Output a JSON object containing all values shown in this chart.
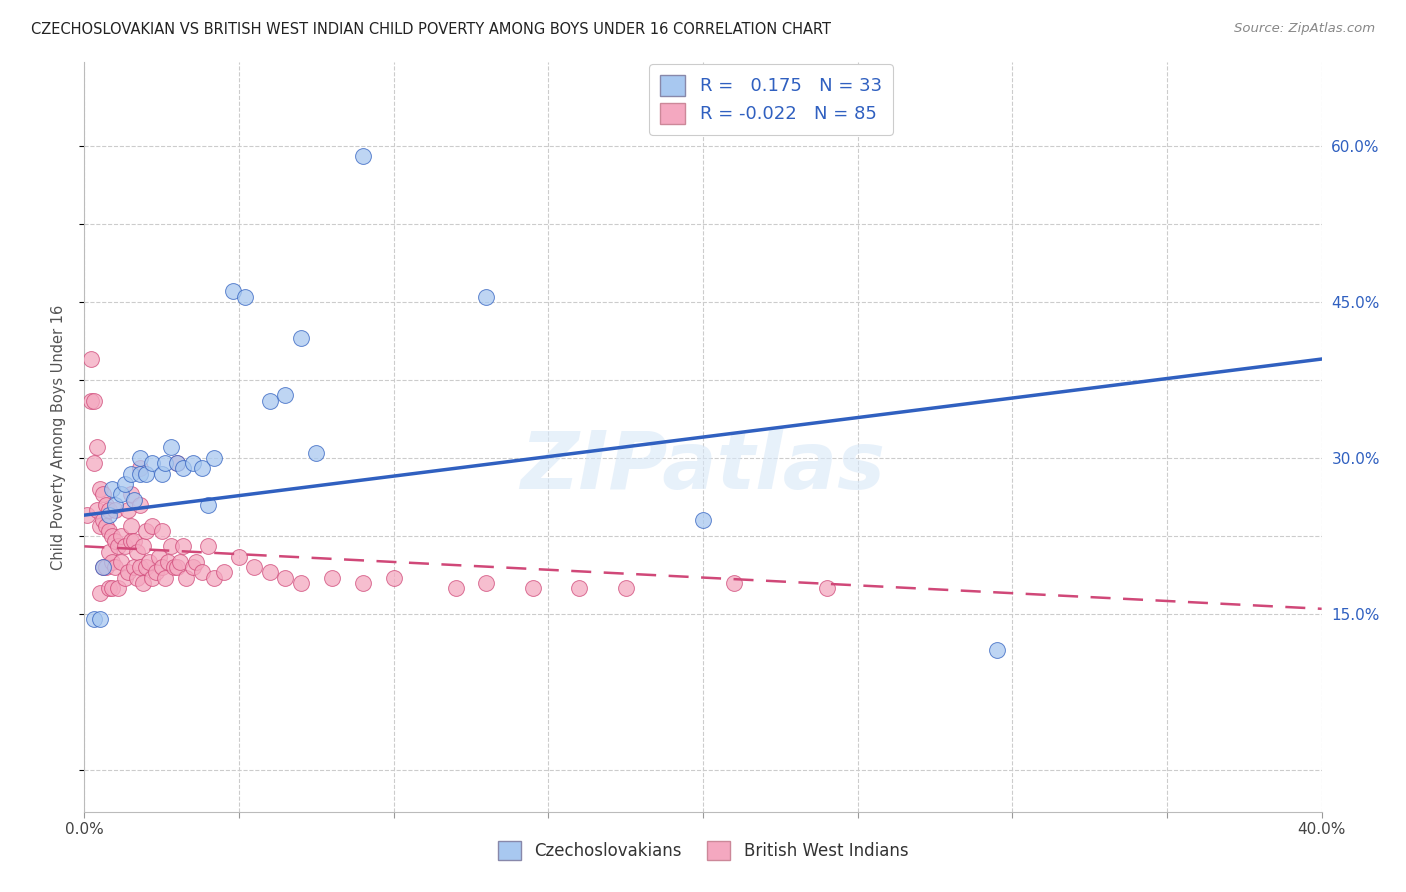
{
  "title": "CZECHOSLOVAKIAN VS BRITISH WEST INDIAN CHILD POVERTY AMONG BOYS UNDER 16 CORRELATION CHART",
  "source": "Source: ZipAtlas.com",
  "ylabel": "Child Poverty Among Boys Under 16",
  "r_czech": 0.175,
  "n_czech": 33,
  "r_bwi": -0.022,
  "n_bwi": 85,
  "xlim": [
    0.0,
    0.4
  ],
  "ylim": [
    -0.04,
    0.68
  ],
  "color_czech": "#a8c8f0",
  "color_bwi": "#f4a8c0",
  "line_color_czech": "#3060c0",
  "line_color_bwi": "#d04878",
  "background": "#ffffff",
  "watermark": "ZIPatlas",
  "czech_x": [
    0.003,
    0.005,
    0.006,
    0.008,
    0.009,
    0.01,
    0.012,
    0.013,
    0.015,
    0.016,
    0.018,
    0.018,
    0.02,
    0.022,
    0.025,
    0.026,
    0.028,
    0.03,
    0.032,
    0.035,
    0.038,
    0.04,
    0.042,
    0.048,
    0.052,
    0.06,
    0.065,
    0.07,
    0.075,
    0.09,
    0.13,
    0.2,
    0.295
  ],
  "czech_y": [
    0.145,
    0.145,
    0.195,
    0.245,
    0.27,
    0.255,
    0.265,
    0.275,
    0.285,
    0.26,
    0.285,
    0.3,
    0.285,
    0.295,
    0.285,
    0.295,
    0.31,
    0.295,
    0.29,
    0.295,
    0.29,
    0.255,
    0.3,
    0.46,
    0.455,
    0.355,
    0.36,
    0.415,
    0.305,
    0.59,
    0.455,
    0.24,
    0.115
  ],
  "bwi_x": [
    0.001,
    0.002,
    0.002,
    0.003,
    0.003,
    0.004,
    0.004,
    0.005,
    0.005,
    0.005,
    0.006,
    0.006,
    0.006,
    0.007,
    0.007,
    0.007,
    0.008,
    0.008,
    0.008,
    0.008,
    0.009,
    0.009,
    0.009,
    0.01,
    0.01,
    0.01,
    0.011,
    0.011,
    0.012,
    0.012,
    0.013,
    0.013,
    0.014,
    0.014,
    0.015,
    0.015,
    0.015,
    0.016,
    0.016,
    0.017,
    0.017,
    0.018,
    0.018,
    0.018,
    0.019,
    0.019,
    0.02,
    0.02,
    0.021,
    0.022,
    0.022,
    0.023,
    0.024,
    0.025,
    0.025,
    0.026,
    0.027,
    0.028,
    0.029,
    0.03,
    0.03,
    0.031,
    0.032,
    0.033,
    0.035,
    0.036,
    0.038,
    0.04,
    0.042,
    0.045,
    0.05,
    0.055,
    0.06,
    0.065,
    0.07,
    0.08,
    0.09,
    0.1,
    0.12,
    0.13,
    0.145,
    0.16,
    0.175,
    0.21,
    0.24
  ],
  "bwi_y": [
    0.245,
    0.395,
    0.355,
    0.295,
    0.355,
    0.25,
    0.31,
    0.17,
    0.235,
    0.27,
    0.195,
    0.24,
    0.265,
    0.195,
    0.235,
    0.255,
    0.175,
    0.21,
    0.23,
    0.25,
    0.175,
    0.2,
    0.225,
    0.195,
    0.22,
    0.25,
    0.175,
    0.215,
    0.2,
    0.225,
    0.185,
    0.215,
    0.19,
    0.25,
    0.235,
    0.265,
    0.22,
    0.195,
    0.22,
    0.185,
    0.21,
    0.195,
    0.255,
    0.29,
    0.18,
    0.215,
    0.195,
    0.23,
    0.2,
    0.185,
    0.235,
    0.19,
    0.205,
    0.195,
    0.23,
    0.185,
    0.2,
    0.215,
    0.195,
    0.295,
    0.195,
    0.2,
    0.215,
    0.185,
    0.195,
    0.2,
    0.19,
    0.215,
    0.185,
    0.19,
    0.205,
    0.195,
    0.19,
    0.185,
    0.18,
    0.185,
    0.18,
    0.185,
    0.175,
    0.18,
    0.175,
    0.175,
    0.175,
    0.18,
    0.175
  ]
}
